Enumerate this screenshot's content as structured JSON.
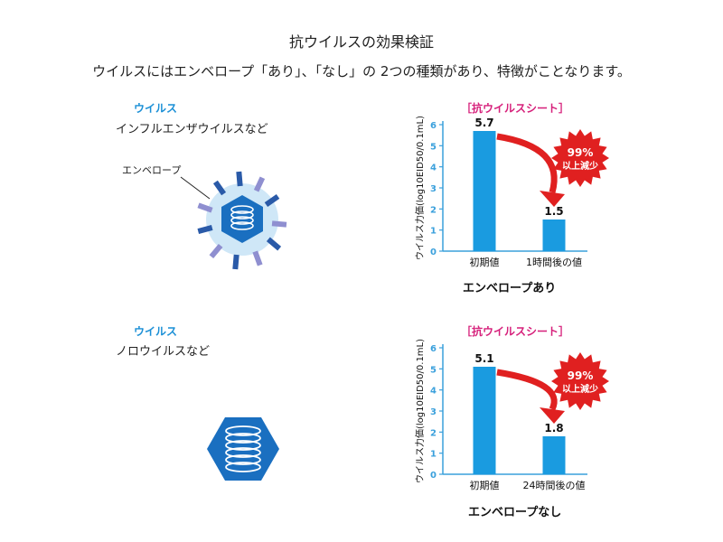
{
  "page": {
    "title": "抗ウイルスの効果検証",
    "subtitle": "ウイルスにはエンベロープ「あり」、「なし」の 2つの種類があり、特徴がことなります。"
  },
  "sections": [
    {
      "virus_label": "ウイルス",
      "virus_desc": "インフルエンザウイルスなど",
      "envelope_label": "エンベロープ"
    },
    {
      "virus_label": "ウイルス",
      "virus_desc": "ノロウイルスなど"
    }
  ],
  "colors": {
    "bar": "#1a9be0",
    "arrow": "#e02020",
    "accent_title": "#d61f7a",
    "virus_label": "#1a8fd6",
    "hexagon": "#1a6fc0",
    "spike_dark": "#2a5aa8",
    "spike_light": "#8f8fd0",
    "halo": "#cfe7f7"
  },
  "chart_data": [
    {
      "type": "bar",
      "title": "［抗ウイルスシート］",
      "ylabel": "ウイルス力価(log10EID50/0.1mL)",
      "categories": [
        "初期値",
        "1時間後の値"
      ],
      "values": [
        5.7,
        1.5
      ],
      "value_labels": [
        "5.7",
        "1.5"
      ],
      "yticks": [
        "0",
        "1",
        "2",
        "3",
        "4",
        "5",
        "6"
      ],
      "ylim": [
        0,
        6
      ],
      "badge": [
        "99%",
        "以上減少"
      ],
      "caption": "エンベロープあり"
    },
    {
      "type": "bar",
      "title": "［抗ウイルスシート］",
      "ylabel": "ウイルス力価(log10EID50/0.1mL)",
      "categories": [
        "初期値",
        "24時間後の値"
      ],
      "values": [
        5.1,
        1.8
      ],
      "value_labels": [
        "5.1",
        "1.8"
      ],
      "yticks": [
        "0",
        "1",
        "2",
        "3",
        "4",
        "5",
        "6"
      ],
      "ylim": [
        0,
        6
      ],
      "badge": [
        "99%",
        "以上減少"
      ],
      "caption": "エンベロープなし"
    }
  ]
}
